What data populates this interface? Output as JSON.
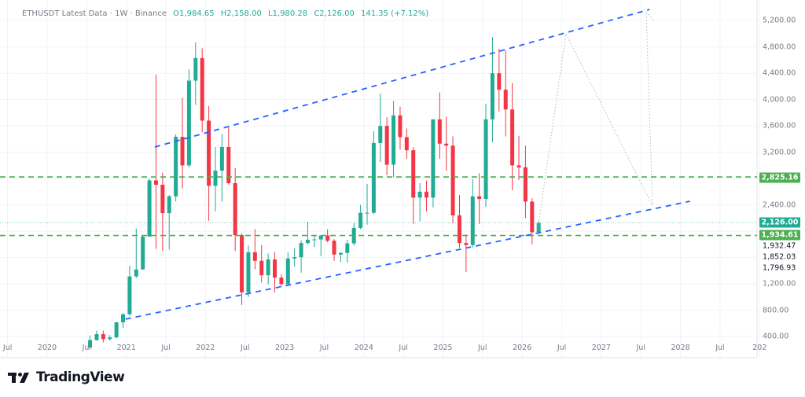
{
  "legend": {
    "symbol": "ETHUSDT Latest Data · 1W · Binance",
    "open": "O1,984.65",
    "high": "H2,158.00",
    "low": "L1,980.28",
    "close": "C2,126.00",
    "change": "141.35 (+7.12%)"
  },
  "branding": {
    "logo_text": "TradingView"
  },
  "colors": {
    "up": "#22ab94",
    "down": "#f23645",
    "trendline": "#2962ff",
    "level": "#4caf50",
    "last_price": "#22ab94",
    "projection": "#b2b5be"
  },
  "chart_data": {
    "type": "candlestick",
    "title": "ETHUSDT Latest Data · 1W · Binance",
    "ylim": [
      400,
      5400
    ],
    "y_ticks": [
      "5,200.00",
      "4,800.00",
      "4,400.00",
      "4,000.00",
      "3,600.00",
      "3,200.00",
      "2,400.00",
      "1,200.00",
      "800.00",
      "400.00"
    ],
    "y_tick_values": [
      5200,
      4800,
      4400,
      4000,
      3600,
      3200,
      2400,
      1200,
      800,
      400
    ],
    "x_ticks": [
      "Jul",
      "2020",
      "Jul",
      "2021",
      "Jul",
      "2022",
      "Jul",
      "2023",
      "Jul",
      "2024",
      "Jul",
      "2025",
      "Jul",
      "2026",
      "Jul",
      "2027",
      "Jul",
      "2028",
      "Jul",
      "202"
    ],
    "x_tick_values": [
      2019.5,
      2020,
      2020.5,
      2021,
      2021.5,
      2022,
      2022.5,
      2023,
      2023.5,
      2024,
      2024.5,
      2025,
      2025.5,
      2026,
      2026.5,
      2027,
      2027.5,
      2028,
      2028.5,
      2029
    ],
    "grid": true,
    "price_labels": {
      "level_high": "2,825.16",
      "last": "2,126.00",
      "level_low": "1,934.61",
      "extra": [
        "1,932.47",
        "1,852.03",
        "1,796.93"
      ]
    },
    "horizontal_levels": [
      2825.16,
      1934.61
    ],
    "trendlines": [
      {
        "from": [
          2021.36,
          3279
        ],
        "to": [
          2027.61,
          5370
        ]
      },
      {
        "from": [
          2020.99,
          663
        ],
        "to": [
          2028.12,
          2455
        ]
      }
    ],
    "candles": [
      [
        "2020-07",
        230,
        415,
        225,
        345
      ],
      [
        "2020-08",
        345,
        488,
        335,
        435
      ],
      [
        "2020-09",
        435,
        490,
        310,
        360
      ],
      [
        "2020-10",
        360,
        420,
        335,
        386
      ],
      [
        "2020-11",
        386,
        622,
        370,
        615
      ],
      [
        "2020-12",
        615,
        755,
        530,
        737
      ],
      [
        "2021-01",
        737,
        1476,
        715,
        1313
      ],
      [
        "2021-02",
        1313,
        2040,
        1290,
        1418
      ],
      [
        "2021-03",
        1418,
        1943,
        1430,
        1918
      ],
      [
        "2021-04",
        1918,
        2800,
        1930,
        2772
      ],
      [
        "2021-05",
        2772,
        4380,
        1730,
        2706
      ],
      [
        "2021-06",
        2706,
        2890,
        1700,
        2275
      ],
      [
        "2021-07",
        2275,
        2550,
        1720,
        2530
      ],
      [
        "2021-08",
        2530,
        3470,
        2450,
        3434
      ],
      [
        "2021-09",
        3434,
        4030,
        2650,
        3000
      ],
      [
        "2021-10",
        3000,
        4460,
        2970,
        4288
      ],
      [
        "2021-11",
        4288,
        4870,
        3920,
        4631
      ],
      [
        "2021-12",
        4631,
        4780,
        3500,
        3680
      ],
      [
        "2022-01",
        3680,
        3900,
        2160,
        2690
      ],
      [
        "2022-02",
        2690,
        3280,
        2300,
        2920
      ],
      [
        "2022-03",
        2920,
        3480,
        2450,
        3280
      ],
      [
        "2022-04",
        3280,
        3580,
        2710,
        2730
      ],
      [
        "2022-05",
        2730,
        2960,
        1700,
        1940
      ],
      [
        "2022-06",
        1940,
        1970,
        880,
        1070
      ],
      [
        "2022-07",
        1070,
        1780,
        1000,
        1680
      ],
      [
        "2022-08",
        1680,
        2030,
        1420,
        1550
      ],
      [
        "2022-09",
        1550,
        1790,
        1220,
        1330
      ],
      [
        "2022-10",
        1330,
        1660,
        1190,
        1570
      ],
      [
        "2022-11",
        1570,
        1680,
        1070,
        1295
      ],
      [
        "2022-12",
        1295,
        1350,
        1160,
        1195
      ],
      [
        "2023-01",
        1195,
        1680,
        1190,
        1585
      ],
      [
        "2023-02",
        1585,
        1740,
        1460,
        1605
      ],
      [
        "2023-03",
        1605,
        1860,
        1370,
        1820
      ],
      [
        "2023-04",
        1820,
        2140,
        1800,
        1870
      ],
      [
        "2023-05",
        1870,
        1930,
        1760,
        1875
      ],
      [
        "2023-06",
        1875,
        1930,
        1620,
        1935
      ],
      [
        "2023-07",
        1935,
        2030,
        1830,
        1855
      ],
      [
        "2023-08",
        1855,
        1880,
        1550,
        1645
      ],
      [
        "2023-09",
        1645,
        1680,
        1530,
        1670
      ],
      [
        "2023-10",
        1670,
        1870,
        1520,
        1815
      ],
      [
        "2023-11",
        1815,
        2130,
        1780,
        2050
      ],
      [
        "2023-12",
        2050,
        2400,
        2030,
        2280
      ],
      [
        "2024-01",
        2280,
        2720,
        2100,
        2280
      ],
      [
        "2024-02",
        2280,
        3520,
        2260,
        3340
      ],
      [
        "2024-03",
        3340,
        4090,
        3050,
        3600
      ],
      [
        "2024-04",
        3600,
        3730,
        2850,
        3010
      ],
      [
        "2024-05",
        3010,
        3980,
        2820,
        3760
      ],
      [
        "2024-06",
        3760,
        3890,
        3240,
        3430
      ],
      [
        "2024-07",
        3430,
        3560,
        3100,
        3230
      ],
      [
        "2024-08",
        3230,
        3280,
        2110,
        2510
      ],
      [
        "2024-09",
        2510,
        2730,
        2150,
        2600
      ],
      [
        "2024-10",
        2600,
        2770,
        2300,
        2510
      ],
      [
        "2024-11",
        2510,
        3680,
        2360,
        3700
      ],
      [
        "2024-12",
        3700,
        4110,
        3100,
        3330
      ],
      [
        "2025-01",
        3330,
        3740,
        2920,
        3300
      ],
      [
        "2025-02",
        3300,
        3440,
        2120,
        2240
      ],
      [
        "2025-03",
        2240,
        2550,
        1750,
        1820
      ],
      [
        "2025-04",
        1820,
        1950,
        1380,
        1790
      ],
      [
        "2025-05",
        1790,
        2790,
        1750,
        2530
      ],
      [
        "2025-06",
        2530,
        2880,
        2110,
        2490
      ],
      [
        "2025-07",
        2490,
        3940,
        2370,
        3700
      ],
      [
        "2025-08",
        3700,
        4950,
        3350,
        4400
      ],
      [
        "2025-09",
        4400,
        4770,
        3820,
        4150
      ],
      [
        "2025-10",
        4150,
        4750,
        3440,
        3850
      ],
      [
        "2025-11",
        3850,
        4250,
        2620,
        3000
      ],
      [
        "2025-12",
        3000,
        3450,
        2780,
        2970
      ],
      [
        "2026-01",
        2970,
        3300,
        2200,
        2450
      ],
      [
        "2026-02",
        2450,
        2500,
        1800,
        1984
      ],
      [
        "2026-03",
        1984.65,
        2158,
        1980.28,
        2126
      ]
    ]
  }
}
